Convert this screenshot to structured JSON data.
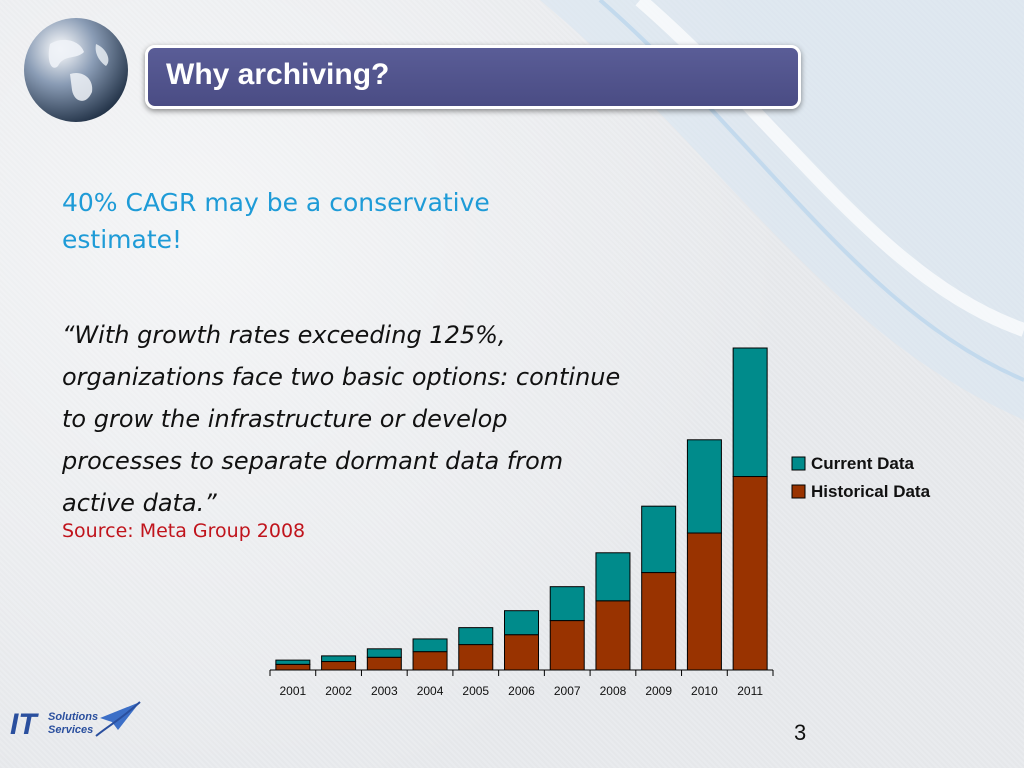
{
  "slide": {
    "title": "Why archiving?",
    "lead": "40% CAGR may be a conservative estimate!",
    "quote": "“With growth rates exceeding 125%, organizations face two basic options: continue to grow the infrastructure or develop processes to separate dormant data from active data.”",
    "source": "Source: Meta Group 2008",
    "page_number": "3"
  },
  "colors": {
    "current": "#008b8b",
    "historical": "#993300",
    "title_bar": "#4f5289",
    "lead_text": "#1e9bd7",
    "source_text": "#c0141c"
  },
  "chart_data": {
    "type": "bar",
    "stacked": true,
    "categories": [
      "2001",
      "2002",
      "2003",
      "2004",
      "2005",
      "2006",
      "2007",
      "2008",
      "2009",
      "2010",
      "2011"
    ],
    "series": [
      {
        "name": "Historical Data",
        "values": [
          4,
          6,
          9,
          13,
          18,
          25,
          35,
          49,
          69,
          97,
          137
        ]
      },
      {
        "name": "Current Data",
        "values": [
          3,
          4,
          6,
          9,
          12,
          17,
          24,
          34,
          47,
          66,
          91
        ]
      }
    ],
    "ylim": [
      0,
      228
    ],
    "grid": false,
    "legend": "right",
    "title": "",
    "xlabel": "",
    "ylabel": ""
  }
}
